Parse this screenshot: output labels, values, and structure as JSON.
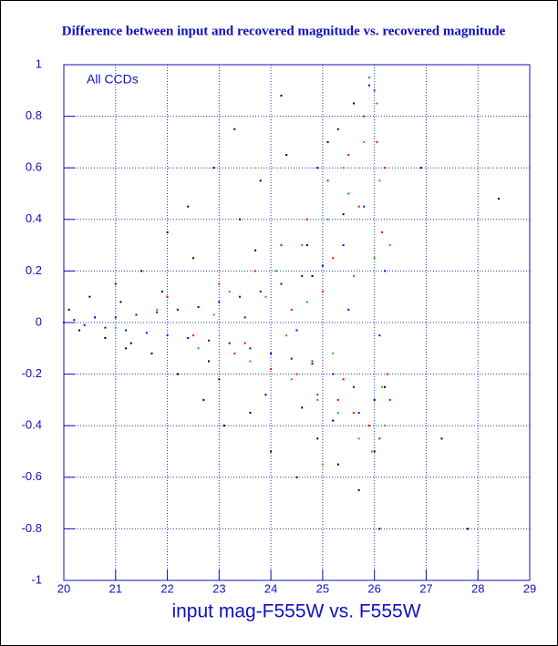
{
  "chart_data": {
    "type": "scatter",
    "title": "Difference between input and recovered magnitude vs. recovered magnitude",
    "x_label": "input mag-F555W vs. F555W",
    "annotation": "All CCDs",
    "xlim": [
      20,
      29
    ],
    "xticks": [
      20,
      21,
      22,
      23,
      24,
      25,
      26,
      27,
      28,
      29
    ],
    "ylim": [
      -1,
      1
    ],
    "yticks": [
      -1,
      -0.8,
      -0.6,
      -0.4,
      -0.2,
      0,
      0.2,
      0.4,
      0.6,
      0.8,
      1
    ],
    "grid": true,
    "series": [
      {
        "color": "#000000",
        "x": [
          20.1,
          20.3,
          20.5,
          20.8,
          21.0,
          21.2,
          21.5,
          21.7,
          22.0,
          22.2,
          22.4,
          22.7,
          22.9,
          23.1,
          23.3,
          23.6,
          23.8,
          24.0,
          24.2,
          24.5,
          24.7,
          24.9,
          25.1,
          25.3,
          25.5,
          25.7,
          25.9,
          26.1,
          20.6,
          21.3,
          21.9,
          22.5,
          23.0,
          23.4,
          23.9,
          24.3,
          24.8,
          25.2,
          25.6,
          26.0,
          21.1,
          22.8,
          23.7,
          24.6,
          25.4,
          26.2,
          27.3,
          27.8,
          28.4,
          26.9
        ],
        "values": [
          0.05,
          -0.03,
          0.1,
          -0.06,
          0.15,
          -0.1,
          0.2,
          -0.12,
          0.35,
          -0.2,
          0.45,
          -0.3,
          0.6,
          -0.4,
          0.75,
          -0.35,
          0.55,
          -0.5,
          0.88,
          -0.6,
          0.3,
          -0.45,
          0.7,
          -0.55,
          0.5,
          -0.65,
          0.95,
          -0.8,
          0.02,
          -0.08,
          0.12,
          0.25,
          -0.22,
          0.4,
          -0.28,
          0.65,
          0.18,
          -0.38,
          0.85,
          -0.5,
          0.08,
          -0.15,
          0.28,
          -0.33,
          0.42,
          -0.25,
          -0.45,
          -0.8,
          0.48,
          0.6
        ]
      },
      {
        "color": "#ff0000",
        "x": [
          22.0,
          22.5,
          23.0,
          23.3,
          23.7,
          24.0,
          24.2,
          24.5,
          24.7,
          24.9,
          25.1,
          25.3,
          25.5,
          25.6,
          25.8,
          25.9,
          26.0,
          26.1,
          26.2,
          26.3,
          24.4,
          25.2,
          25.7,
          26.05,
          23.5,
          24.8,
          25.4,
          26.15,
          25.0,
          26.25
        ],
        "values": [
          0.1,
          -0.05,
          0.15,
          -0.12,
          0.2,
          -0.18,
          0.3,
          -0.2,
          0.4,
          -0.28,
          0.55,
          -0.3,
          0.65,
          -0.35,
          0.8,
          -0.4,
          0.9,
          -0.45,
          0.6,
          -0.3,
          0.05,
          0.25,
          0.45,
          0.7,
          -0.08,
          -0.15,
          -0.22,
          0.35,
          0.12,
          -0.2
        ]
      },
      {
        "color": "#00cc00",
        "x": [
          21.0,
          21.8,
          22.6,
          23.2,
          23.6,
          24.1,
          24.4,
          24.6,
          24.9,
          25.1,
          25.3,
          25.5,
          25.7,
          25.8,
          25.95,
          26.05,
          26.1,
          26.2,
          26.3,
          24.7,
          25.2,
          25.6,
          25.9,
          26.15,
          23.9,
          24.3,
          25.4,
          26.0,
          22.9,
          25.0
        ],
        "values": [
          -0.02,
          0.05,
          -0.1,
          0.12,
          -0.15,
          0.2,
          -0.22,
          0.3,
          -0.3,
          0.4,
          -0.35,
          0.5,
          -0.45,
          0.7,
          -0.5,
          0.85,
          0.55,
          -0.4,
          0.3,
          0.08,
          -0.12,
          0.18,
          0.95,
          -0.25,
          0.1,
          -0.05,
          0.6,
          0.25,
          0.03,
          -0.55
        ]
      },
      {
        "color": "#0000ff",
        "x": [
          20.0,
          20.2,
          20.4,
          20.6,
          20.8,
          21.0,
          21.2,
          21.4,
          21.6,
          21.8,
          22.0,
          22.2,
          22.4,
          22.6,
          22.8,
          23.0,
          23.2,
          23.4,
          23.6,
          23.8,
          24.0,
          24.2,
          24.4,
          24.6,
          24.8,
          25.0,
          25.2,
          25.4,
          25.6,
          25.8,
          26.0,
          26.2,
          23.5,
          24.5,
          25.5,
          26.1,
          24.9,
          25.3,
          25.7,
          25.9
        ],
        "values": [
          0.0,
          0.01,
          -0.01,
          0.02,
          -0.02,
          0.02,
          -0.03,
          0.03,
          -0.04,
          0.04,
          -0.05,
          0.05,
          -0.06,
          0.06,
          -0.07,
          0.08,
          -0.08,
          0.1,
          -0.1,
          0.12,
          -0.12,
          0.15,
          -0.14,
          0.18,
          -0.16,
          0.22,
          -0.2,
          0.3,
          -0.25,
          0.45,
          -0.3,
          0.2,
          0.02,
          -0.03,
          0.05,
          -0.05,
          0.6,
          0.75,
          -0.35,
          0.92
        ]
      }
    ]
  }
}
